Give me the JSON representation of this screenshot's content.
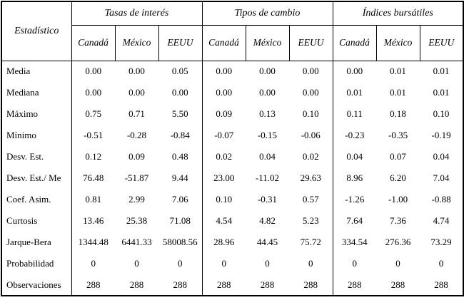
{
  "table": {
    "stat_column_header": "Estadístico",
    "groups": [
      {
        "label": "Tasas de interés",
        "columns": [
          "Canadá",
          "México",
          "EEUU"
        ]
      },
      {
        "label": "Tipos de cambio",
        "columns": [
          "Canadá",
          "México",
          "EEUU"
        ]
      },
      {
        "label": "Índices bursátiles",
        "columns": [
          "Canadá",
          "México",
          "EEUU"
        ]
      }
    ],
    "rows": [
      {
        "label": "Media",
        "values": [
          "0.00",
          "0.00",
          "0.05",
          "0.00",
          "0.00",
          "0.00",
          "0.00",
          "0.01",
          "0.01"
        ]
      },
      {
        "label": "Mediana",
        "values": [
          "0.00",
          "0.00",
          "0.00",
          "0.00",
          "0.00",
          "0.00",
          "0.01",
          "0.01",
          "0.01"
        ]
      },
      {
        "label": "Máximo",
        "values": [
          "0.75",
          "0.71",
          "5.50",
          "0.09",
          "0.13",
          "0.10",
          "0.11",
          "0.18",
          "0.10"
        ]
      },
      {
        "label": "Mínimo",
        "values": [
          "-0.51",
          "-0.28",
          "-0.84",
          "-0.07",
          "-0.15",
          "-0.06",
          "-0.23",
          "-0.35",
          "-0.19"
        ]
      },
      {
        "label": "Desv. Est.",
        "values": [
          "0.12",
          "0.09",
          "0.48",
          "0.02",
          "0.04",
          "0.02",
          "0.04",
          "0.07",
          "0.04"
        ]
      },
      {
        "label": "Desv. Est./ Me",
        "values": [
          "76.48",
          "-51.87",
          "9.44",
          "23.00",
          "-11.02",
          "29.63",
          "8.96",
          "6.20",
          "7.04"
        ]
      },
      {
        "label": "Coef. Asim.",
        "values": [
          "0.81",
          "2.99",
          "7.06",
          "0.10",
          "-0.31",
          "0.57",
          "-1.26",
          "-1.00",
          "-0.88"
        ]
      },
      {
        "label": "Curtosis",
        "values": [
          "13.46",
          "25.38",
          "71.08",
          "4.54",
          "4.82",
          "5.23",
          "7.64",
          "7.36",
          "4.74"
        ]
      },
      {
        "label": "Jarque-Bera",
        "values": [
          "1344.48",
          "6441.33",
          "58008.56",
          "28.96",
          "44.45",
          "75.72",
          "334.54",
          "276.36",
          "73.29"
        ]
      },
      {
        "label": "Probabilidad",
        "values": [
          "0",
          "0",
          "0",
          "0",
          "0",
          "0",
          "0",
          "0",
          "0"
        ]
      },
      {
        "label": "Observaciones",
        "values": [
          "288",
          "288",
          "288",
          "288",
          "288",
          "288",
          "288",
          "288",
          "288"
        ]
      }
    ]
  },
  "colors": {
    "border": "#000000",
    "text": "#000000",
    "background": "#ffffff"
  }
}
